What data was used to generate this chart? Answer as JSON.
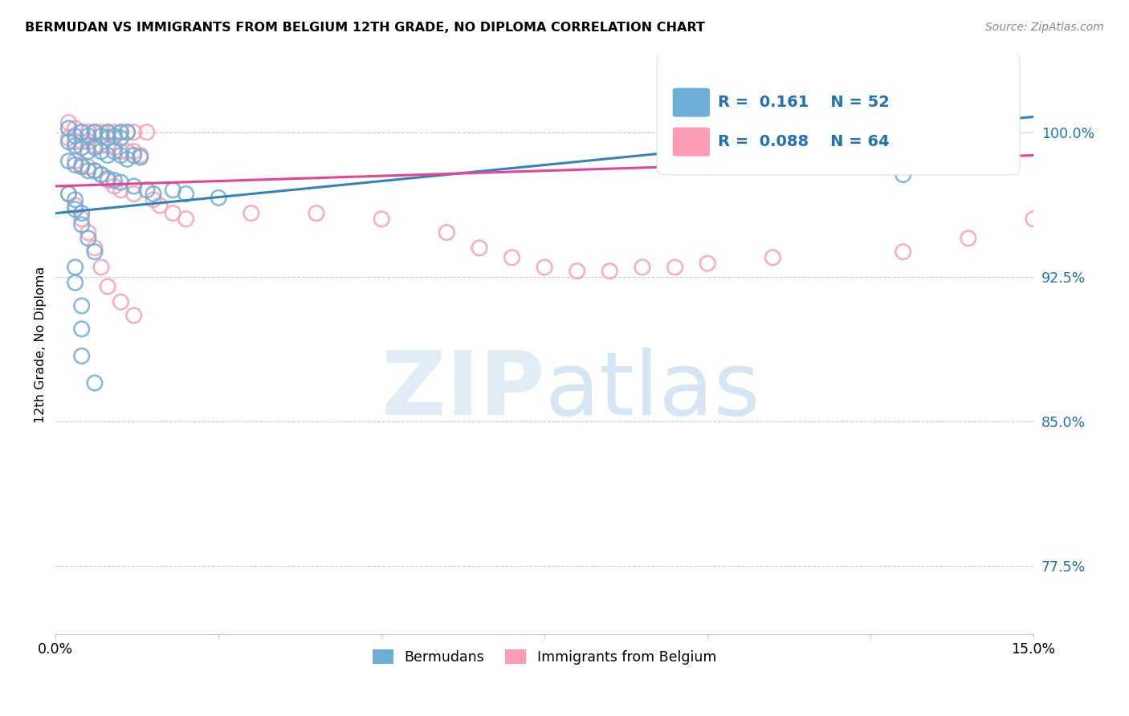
{
  "title": "BERMUDAN VS IMMIGRANTS FROM BELGIUM 12TH GRADE, NO DIPLOMA CORRELATION CHART",
  "source": "Source: ZipAtlas.com",
  "ylabel": "12th Grade, No Diploma",
  "ytick_labels": [
    "77.5%",
    "85.0%",
    "92.5%",
    "100.0%"
  ],
  "ytick_values": [
    0.775,
    0.85,
    0.925,
    1.0
  ],
  "xlim": [
    0.0,
    0.15
  ],
  "ylim": [
    0.74,
    1.04
  ],
  "legend_blue_R": "0.161",
  "legend_blue_N": "52",
  "legend_pink_R": "0.088",
  "legend_pink_N": "64",
  "legend_label_blue": "Bermudans",
  "legend_label_pink": "Immigrants from Belgium",
  "watermark_zip": "ZIP",
  "watermark_atlas": "atlas",
  "blue_color": "#6baed6",
  "pink_color": "#fc9db5",
  "blue_line_x": [
    0.0,
    0.15
  ],
  "blue_line_y": [
    0.958,
    1.008
  ],
  "pink_line_x": [
    0.0,
    0.15
  ],
  "pink_line_y": [
    0.972,
    0.988
  ],
  "blue_scatter": [
    [
      0.002,
      1.002
    ],
    [
      0.003,
      0.998
    ],
    [
      0.004,
      1.0
    ],
    [
      0.005,
      0.998
    ],
    [
      0.006,
      1.0
    ],
    [
      0.007,
      0.998
    ],
    [
      0.008,
      1.0
    ],
    [
      0.008,
      0.997
    ],
    [
      0.009,
      0.998
    ],
    [
      0.01,
      1.0
    ],
    [
      0.01,
      0.997
    ],
    [
      0.011,
      1.0
    ],
    [
      0.002,
      0.995
    ],
    [
      0.003,
      0.993
    ],
    [
      0.004,
      0.992
    ],
    [
      0.005,
      0.99
    ],
    [
      0.006,
      0.992
    ],
    [
      0.007,
      0.99
    ],
    [
      0.008,
      0.988
    ],
    [
      0.009,
      0.99
    ],
    [
      0.01,
      0.988
    ],
    [
      0.011,
      0.986
    ],
    [
      0.012,
      0.988
    ],
    [
      0.013,
      0.987
    ],
    [
      0.002,
      0.985
    ],
    [
      0.003,
      0.983
    ],
    [
      0.004,
      0.982
    ],
    [
      0.005,
      0.98
    ],
    [
      0.006,
      0.98
    ],
    [
      0.007,
      0.978
    ],
    [
      0.008,
      0.976
    ],
    [
      0.009,
      0.975
    ],
    [
      0.01,
      0.974
    ],
    [
      0.012,
      0.972
    ],
    [
      0.014,
      0.97
    ],
    [
      0.015,
      0.968
    ],
    [
      0.018,
      0.97
    ],
    [
      0.02,
      0.968
    ],
    [
      0.025,
      0.966
    ],
    [
      0.002,
      0.968
    ],
    [
      0.003,
      0.965
    ],
    [
      0.003,
      0.96
    ],
    [
      0.004,
      0.958
    ],
    [
      0.004,
      0.952
    ],
    [
      0.005,
      0.945
    ],
    [
      0.006,
      0.938
    ],
    [
      0.003,
      0.93
    ],
    [
      0.003,
      0.922
    ],
    [
      0.004,
      0.91
    ],
    [
      0.004,
      0.898
    ],
    [
      0.004,
      0.884
    ],
    [
      0.006,
      0.87
    ],
    [
      0.13,
      0.978
    ]
  ],
  "pink_scatter": [
    [
      0.002,
      1.005
    ],
    [
      0.003,
      1.002
    ],
    [
      0.004,
      1.0
    ],
    [
      0.005,
      1.0
    ],
    [
      0.006,
      1.0
    ],
    [
      0.007,
      1.0
    ],
    [
      0.008,
      1.0
    ],
    [
      0.009,
      1.0
    ],
    [
      0.01,
      1.0
    ],
    [
      0.011,
      1.0
    ],
    [
      0.012,
      1.0
    ],
    [
      0.014,
      1.0
    ],
    [
      0.002,
      0.997
    ],
    [
      0.003,
      0.995
    ],
    [
      0.004,
      0.995
    ],
    [
      0.005,
      0.995
    ],
    [
      0.006,
      0.993
    ],
    [
      0.007,
      0.993
    ],
    [
      0.008,
      0.993
    ],
    [
      0.009,
      0.992
    ],
    [
      0.01,
      0.99
    ],
    [
      0.011,
      0.99
    ],
    [
      0.012,
      0.99
    ],
    [
      0.013,
      0.988
    ],
    [
      0.003,
      0.985
    ],
    [
      0.004,
      0.983
    ],
    [
      0.005,
      0.982
    ],
    [
      0.006,
      0.98
    ],
    [
      0.007,
      0.978
    ],
    [
      0.008,
      0.975
    ],
    [
      0.009,
      0.972
    ],
    [
      0.01,
      0.97
    ],
    [
      0.012,
      0.968
    ],
    [
      0.015,
      0.965
    ],
    [
      0.016,
      0.962
    ],
    [
      0.018,
      0.958
    ],
    [
      0.02,
      0.955
    ],
    [
      0.002,
      0.968
    ],
    [
      0.003,
      0.962
    ],
    [
      0.004,
      0.955
    ],
    [
      0.005,
      0.948
    ],
    [
      0.006,
      0.94
    ],
    [
      0.007,
      0.93
    ],
    [
      0.008,
      0.92
    ],
    [
      0.01,
      0.912
    ],
    [
      0.012,
      0.905
    ],
    [
      0.03,
      0.958
    ],
    [
      0.04,
      0.958
    ],
    [
      0.05,
      0.955
    ],
    [
      0.06,
      0.948
    ],
    [
      0.065,
      0.94
    ],
    [
      0.07,
      0.935
    ],
    [
      0.075,
      0.93
    ],
    [
      0.08,
      0.928
    ],
    [
      0.085,
      0.928
    ],
    [
      0.09,
      0.93
    ],
    [
      0.095,
      0.93
    ],
    [
      0.1,
      0.932
    ],
    [
      0.11,
      0.935
    ],
    [
      0.13,
      0.938
    ],
    [
      0.14,
      0.945
    ],
    [
      0.15,
      0.955
    ]
  ]
}
